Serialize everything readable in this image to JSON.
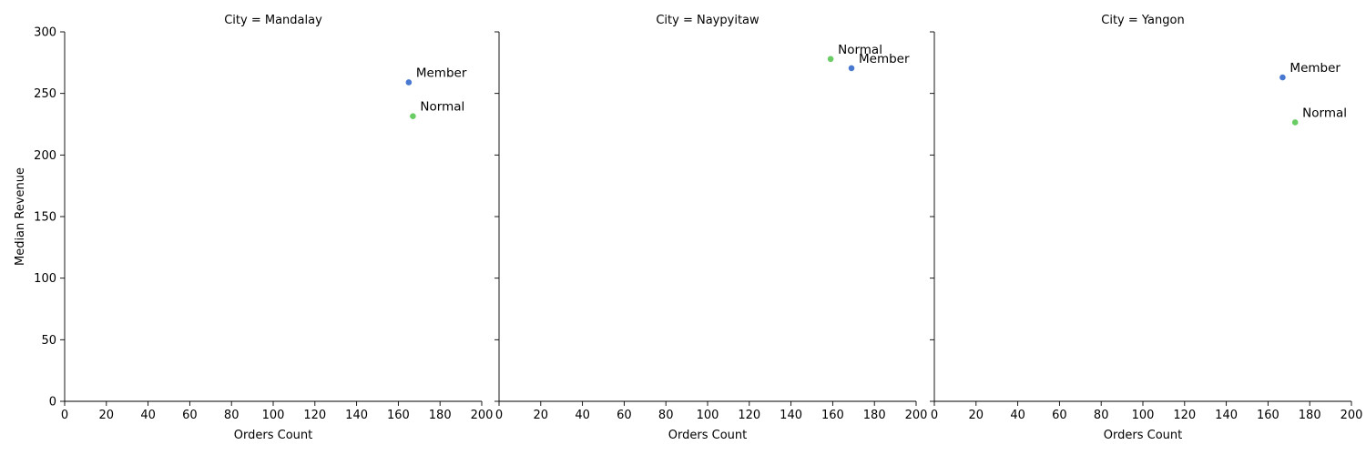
{
  "chart_data": {
    "type": "scatter",
    "xlabel": "Orders Count",
    "ylabel": "Median Revenue",
    "xlim": [
      0,
      200
    ],
    "ylim": [
      0,
      300
    ],
    "xticks": [
      0,
      20,
      40,
      60,
      80,
      100,
      120,
      140,
      160,
      180,
      200
    ],
    "yticks": [
      0,
      50,
      100,
      150,
      200,
      250,
      300
    ],
    "grid": false,
    "colors": {
      "Member": "#4878d0",
      "Normal": "#6acc64"
    },
    "facets": [
      {
        "title": "City = Mandalay",
        "points": [
          {
            "label": "Member",
            "x": 165,
            "y": 259
          },
          {
            "label": "Normal",
            "x": 167,
            "y": 231.5
          }
        ]
      },
      {
        "title": "City = Naypyitaw",
        "points": [
          {
            "label": "Normal",
            "x": 159,
            "y": 278
          },
          {
            "label": "Member",
            "x": 169,
            "y": 270.5
          }
        ]
      },
      {
        "title": "City = Yangon",
        "points": [
          {
            "label": "Member",
            "x": 167,
            "y": 263
          },
          {
            "label": "Normal",
            "x": 173,
            "y": 226.5
          }
        ]
      }
    ]
  }
}
